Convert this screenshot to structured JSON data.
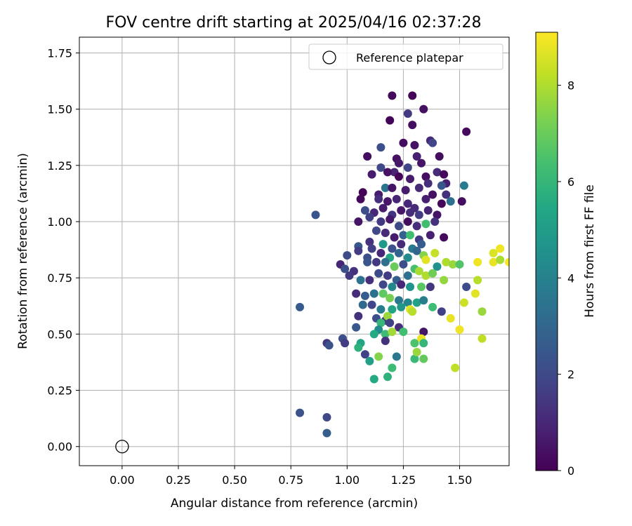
{
  "chart_data": {
    "type": "scatter",
    "title": "FOV centre drift starting at 2025/04/16 02:37:28",
    "xlabel": "Angular distance from reference (arcmin)",
    "ylabel": "Rotation from reference (arcmin)",
    "xlim": [
      -0.19,
      1.72
    ],
    "ylim": [
      -0.085,
      1.82
    ],
    "xticks": [
      "0.00",
      "0.25",
      "0.50",
      "0.75",
      "1.00",
      "1.25",
      "1.50"
    ],
    "yticks": [
      "0.00",
      "0.25",
      "0.50",
      "0.75",
      "1.00",
      "1.25",
      "1.50",
      "1.75"
    ],
    "grid": true,
    "legend": {
      "position": "top-right",
      "entries": [
        "Reference platepar"
      ]
    },
    "reference": {
      "x": 0.0,
      "y": 0.0,
      "label": "Reference platepar"
    },
    "colorbar": {
      "label": "Hours from first FF file",
      "range": [
        0,
        9.1
      ],
      "ticks": [
        "0",
        "2",
        "4",
        "6",
        "8"
      ],
      "colormap": "viridis"
    },
    "point_columns": [
      "x",
      "y",
      "hours"
    ],
    "points": [
      [
        1.2,
        1.56,
        0.2
      ],
      [
        1.29,
        1.56,
        0.1
      ],
      [
        1.34,
        1.5,
        0.4
      ],
      [
        1.53,
        1.4,
        0.2
      ],
      [
        1.19,
        1.45,
        0.1
      ],
      [
        1.27,
        1.48,
        1.5
      ],
      [
        1.29,
        1.43,
        0.3
      ],
      [
        1.37,
        1.36,
        1.0
      ],
      [
        1.38,
        1.35,
        1.9
      ],
      [
        1.3,
        1.34,
        0.4
      ],
      [
        1.25,
        1.35,
        0.3
      ],
      [
        1.15,
        1.33,
        2.2
      ],
      [
        1.09,
        1.29,
        0.3
      ],
      [
        1.22,
        1.28,
        0.4
      ],
      [
        1.31,
        1.29,
        0.8
      ],
      [
        1.41,
        1.29,
        0.3
      ],
      [
        1.33,
        1.26,
        0.5
      ],
      [
        1.23,
        1.26,
        0.6
      ],
      [
        1.11,
        1.21,
        0.7
      ],
      [
        1.15,
        1.24,
        2.0
      ],
      [
        1.21,
        1.22,
        0.9
      ],
      [
        1.27,
        1.24,
        1.9
      ],
      [
        1.18,
        1.22,
        0.4
      ],
      [
        1.35,
        1.2,
        0.3
      ],
      [
        1.4,
        1.22,
        1.1
      ],
      [
        1.43,
        1.21,
        0.2
      ],
      [
        1.23,
        1.2,
        0.1
      ],
      [
        1.28,
        1.19,
        0.7
      ],
      [
        1.36,
        1.17,
        1.2
      ],
      [
        1.44,
        1.17,
        0.8
      ],
      [
        1.42,
        1.16,
        2.5
      ],
      [
        1.52,
        1.16,
        3.8
      ],
      [
        1.07,
        1.13,
        0.1
      ],
      [
        1.14,
        1.12,
        0.7
      ],
      [
        1.17,
        1.15,
        3.5
      ],
      [
        1.2,
        1.15,
        0.5
      ],
      [
        1.26,
        1.14,
        0.7
      ],
      [
        1.32,
        1.15,
        1.1
      ],
      [
        1.38,
        1.12,
        0.4
      ],
      [
        1.44,
        1.12,
        1.3
      ],
      [
        1.06,
        1.1,
        0.2
      ],
      [
        1.14,
        1.1,
        1.2
      ],
      [
        1.18,
        1.09,
        0.6
      ],
      [
        1.22,
        1.1,
        0.9
      ],
      [
        1.27,
        1.08,
        1.0
      ],
      [
        1.3,
        1.06,
        1.1
      ],
      [
        1.35,
        1.1,
        0.8
      ],
      [
        1.42,
        1.08,
        0.2
      ],
      [
        1.46,
        1.09,
        3.3
      ],
      [
        1.51,
        1.09,
        0.3
      ],
      [
        1.08,
        1.05,
        2.2
      ],
      [
        1.12,
        1.04,
        1.0
      ],
      [
        1.16,
        1.06,
        0.7
      ],
      [
        1.2,
        1.03,
        1.4
      ],
      [
        1.24,
        1.05,
        0.6
      ],
      [
        1.28,
        1.04,
        1.2
      ],
      [
        1.32,
        1.03,
        1.6
      ],
      [
        1.36,
        1.05,
        0.9
      ],
      [
        1.4,
        1.03,
        0.5
      ],
      [
        0.86,
        1.03,
        2.4
      ],
      [
        1.1,
        1.02,
        1.7
      ],
      [
        1.15,
        1.0,
        1.5
      ],
      [
        1.19,
        1.01,
        0.6
      ],
      [
        1.23,
        0.98,
        2.0
      ],
      [
        1.27,
        1.0,
        0.3
      ],
      [
        1.31,
        0.98,
        1.2
      ],
      [
        1.35,
        0.99,
        6.3
      ],
      [
        1.39,
        1.0,
        1.3
      ],
      [
        1.05,
        1.0,
        0.5
      ],
      [
        1.43,
        0.93,
        0.2
      ],
      [
        1.13,
        0.96,
        2.0
      ],
      [
        1.17,
        0.95,
        1.1
      ],
      [
        1.21,
        0.93,
        0.7
      ],
      [
        1.25,
        0.94,
        2.8
      ],
      [
        1.28,
        0.94,
        6.3
      ],
      [
        1.32,
        0.92,
        1.5
      ],
      [
        1.37,
        0.94,
        0.8
      ],
      [
        1.1,
        0.91,
        1.3
      ],
      [
        1.16,
        0.9,
        4.9
      ],
      [
        1.2,
        0.88,
        2.3
      ],
      [
        1.24,
        0.9,
        1.1
      ],
      [
        1.29,
        0.88,
        3.7
      ],
      [
        1.33,
        0.9,
        2.6
      ],
      [
        1.05,
        0.89,
        2.5
      ],
      [
        1.11,
        0.88,
        1.7
      ],
      [
        1.15,
        0.86,
        1.0
      ],
      [
        1.19,
        0.84,
        5.4
      ],
      [
        1.23,
        0.86,
        2.9
      ],
      [
        1.27,
        0.84,
        4.3
      ],
      [
        1.31,
        0.87,
        3.0
      ],
      [
        1.34,
        0.85,
        7.4
      ],
      [
        1.39,
        0.86,
        8.3
      ],
      [
        1.0,
        0.85,
        2.1
      ],
      [
        1.05,
        0.87,
        1.6
      ],
      [
        1.09,
        0.84,
        2.2
      ],
      [
        1.13,
        0.82,
        1.5
      ],
      [
        1.17,
        0.82,
        3.3
      ],
      [
        1.21,
        0.8,
        7.0
      ],
      [
        1.25,
        0.81,
        2.2
      ],
      [
        1.3,
        0.79,
        6.4
      ],
      [
        1.35,
        0.83,
        8.7
      ],
      [
        1.4,
        0.8,
        4.6
      ],
      [
        1.44,
        0.82,
        8.0
      ],
      [
        1.47,
        0.81,
        7.7
      ],
      [
        1.5,
        0.81,
        6.6
      ],
      [
        1.58,
        0.82,
        8.9
      ],
      [
        1.65,
        0.86,
        8.6
      ],
      [
        1.68,
        0.88,
        8.9
      ],
      [
        1.65,
        0.82,
        8.8
      ],
      [
        1.68,
        0.83,
        7.9
      ],
      [
        1.72,
        0.82,
        9.0
      ],
      [
        0.97,
        0.81,
        0.9
      ],
      [
        0.99,
        0.79,
        2.2
      ],
      [
        1.03,
        0.78,
        1.3
      ],
      [
        1.09,
        0.82,
        2.4
      ],
      [
        1.14,
        0.77,
        2.1
      ],
      [
        1.18,
        0.76,
        1.6
      ],
      [
        1.22,
        0.74,
        2.7
      ],
      [
        1.27,
        0.76,
        3.4
      ],
      [
        1.32,
        0.78,
        7.9
      ],
      [
        1.35,
        0.76,
        8.0
      ],
      [
        1.38,
        0.77,
        7.1
      ],
      [
        1.43,
        0.74,
        7.6
      ],
      [
        1.58,
        0.74,
        8.1
      ],
      [
        1.01,
        0.76,
        1.5
      ],
      [
        1.06,
        0.74,
        3.4
      ],
      [
        1.1,
        0.74,
        1.2
      ],
      [
        1.16,
        0.72,
        2.0
      ],
      [
        1.2,
        0.71,
        4.2
      ],
      [
        1.24,
        0.72,
        1.0
      ],
      [
        1.28,
        0.71,
        4.6
      ],
      [
        1.33,
        0.71,
        6.7
      ],
      [
        1.37,
        0.71,
        1.4
      ],
      [
        1.53,
        0.71,
        2.1
      ],
      [
        1.04,
        0.68,
        1.1
      ],
      [
        1.08,
        0.67,
        2.6
      ],
      [
        1.12,
        0.68,
        3.4
      ],
      [
        1.16,
        0.68,
        6.8
      ],
      [
        1.19,
        0.66,
        7.2
      ],
      [
        1.23,
        0.65,
        3.6
      ],
      [
        1.27,
        0.64,
        4.1
      ],
      [
        1.31,
        0.64,
        5.2
      ],
      [
        1.34,
        0.65,
        3.9
      ],
      [
        1.38,
        0.62,
        6.2
      ],
      [
        1.42,
        0.6,
        1.7
      ],
      [
        1.52,
        0.64,
        8.4
      ],
      [
        1.57,
        0.68,
        8.7
      ],
      [
        1.07,
        0.63,
        3.1
      ],
      [
        1.11,
        0.63,
        1.9
      ],
      [
        1.15,
        0.61,
        3.8
      ],
      [
        1.2,
        0.61,
        5.3
      ],
      [
        1.24,
        0.62,
        4.8
      ],
      [
        1.28,
        0.61,
        8.7
      ],
      [
        1.29,
        0.6,
        8.1
      ],
      [
        0.79,
        0.62,
        2.6
      ],
      [
        1.05,
        0.58,
        1.3
      ],
      [
        1.13,
        0.57,
        2.2
      ],
      [
        1.17,
        0.56,
        1.5
      ],
      [
        1.18,
        0.58,
        7.7
      ],
      [
        1.15,
        0.55,
        6.0
      ],
      [
        1.19,
        0.55,
        1.7
      ],
      [
        1.23,
        0.53,
        1.2
      ],
      [
        1.46,
        0.57,
        8.8
      ],
      [
        1.6,
        0.6,
        7.7
      ],
      [
        1.04,
        0.53,
        2.5
      ],
      [
        1.14,
        0.52,
        4.3
      ],
      [
        1.17,
        0.5,
        6.2
      ],
      [
        1.2,
        0.51,
        7.8
      ],
      [
        1.25,
        0.51,
        6.3
      ],
      [
        1.34,
        0.51,
        0.5
      ],
      [
        1.5,
        0.52,
        8.9
      ],
      [
        0.98,
        0.48,
        2.2
      ],
      [
        1.06,
        0.46,
        5.3
      ],
      [
        1.12,
        0.5,
        5.5
      ],
      [
        1.17,
        0.47,
        1.3
      ],
      [
        1.3,
        0.46,
        6.5
      ],
      [
        1.33,
        0.48,
        8.8
      ],
      [
        1.34,
        0.46,
        6.0
      ],
      [
        0.91,
        0.46,
        1.4
      ],
      [
        0.92,
        0.45,
        2.3
      ],
      [
        0.99,
        0.46,
        1.6
      ],
      [
        1.05,
        0.44,
        5.8
      ],
      [
        1.08,
        0.41,
        1.8
      ],
      [
        1.14,
        0.4,
        7.4
      ],
      [
        1.22,
        0.4,
        3.6
      ],
      [
        1.3,
        0.39,
        6.1
      ],
      [
        1.31,
        0.42,
        7.7
      ],
      [
        1.34,
        0.39,
        6.9
      ],
      [
        1.6,
        0.48,
        8.2
      ],
      [
        1.1,
        0.38,
        5.1
      ],
      [
        1.2,
        0.35,
        6.2
      ],
      [
        1.48,
        0.35,
        8.2
      ],
      [
        1.12,
        0.3,
        5.5
      ],
      [
        1.18,
        0.31,
        5.8
      ],
      [
        0.79,
        0.15,
        2.3
      ],
      [
        0.91,
        0.13,
        2.0
      ],
      [
        0.91,
        0.06,
        2.7
      ]
    ]
  }
}
